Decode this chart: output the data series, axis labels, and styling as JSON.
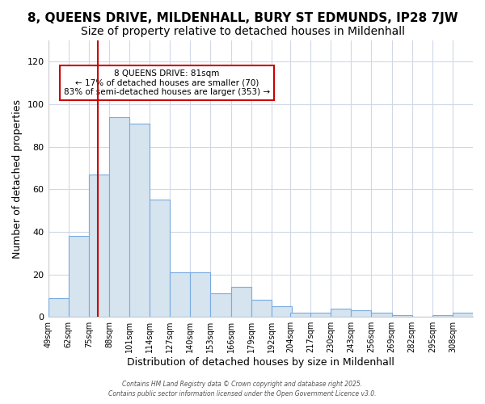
{
  "title": "8, QUEENS DRIVE, MILDENHALL, BURY ST EDMUNDS, IP28 7JW",
  "subtitle": "Size of property relative to detached houses in Mildenhall",
  "xlabel": "Distribution of detached houses by size in Mildenhall",
  "ylabel": "Number of detached properties",
  "bar_color": "#d6e4f0",
  "bar_edge_color": "#7aabe0",
  "annotation_box_color": "#ffffff",
  "annotation_box_edge": "#cc0000",
  "annotation_line_color": "#cc0000",
  "property_size": 81,
  "annotation_title": "8 QUEENS DRIVE: 81sqm",
  "annotation_line1": "← 17% of detached houses are smaller (70)",
  "annotation_line2": "83% of semi-detached houses are larger (353) →",
  "footer1": "Contains HM Land Registry data © Crown copyright and database right 2025.",
  "footer2": "Contains public sector information licensed under the Open Government Licence v3.0.",
  "bins": [
    49,
    62,
    75,
    88,
    101,
    114,
    127,
    140,
    153,
    166,
    179,
    192,
    204,
    217,
    230,
    243,
    256,
    269,
    282,
    295,
    308
  ],
  "values": [
    9,
    38,
    67,
    94,
    91,
    55,
    21,
    21,
    11,
    14,
    8,
    5,
    2,
    2,
    4,
    3,
    2,
    1,
    0,
    1,
    2
  ],
  "ylim": [
    0,
    130
  ],
  "yticks": [
    0,
    20,
    40,
    60,
    80,
    100,
    120
  ],
  "bg_color": "#ffffff",
  "grid_color": "#d0d8e8",
  "title_fontsize": 11,
  "subtitle_fontsize": 10
}
